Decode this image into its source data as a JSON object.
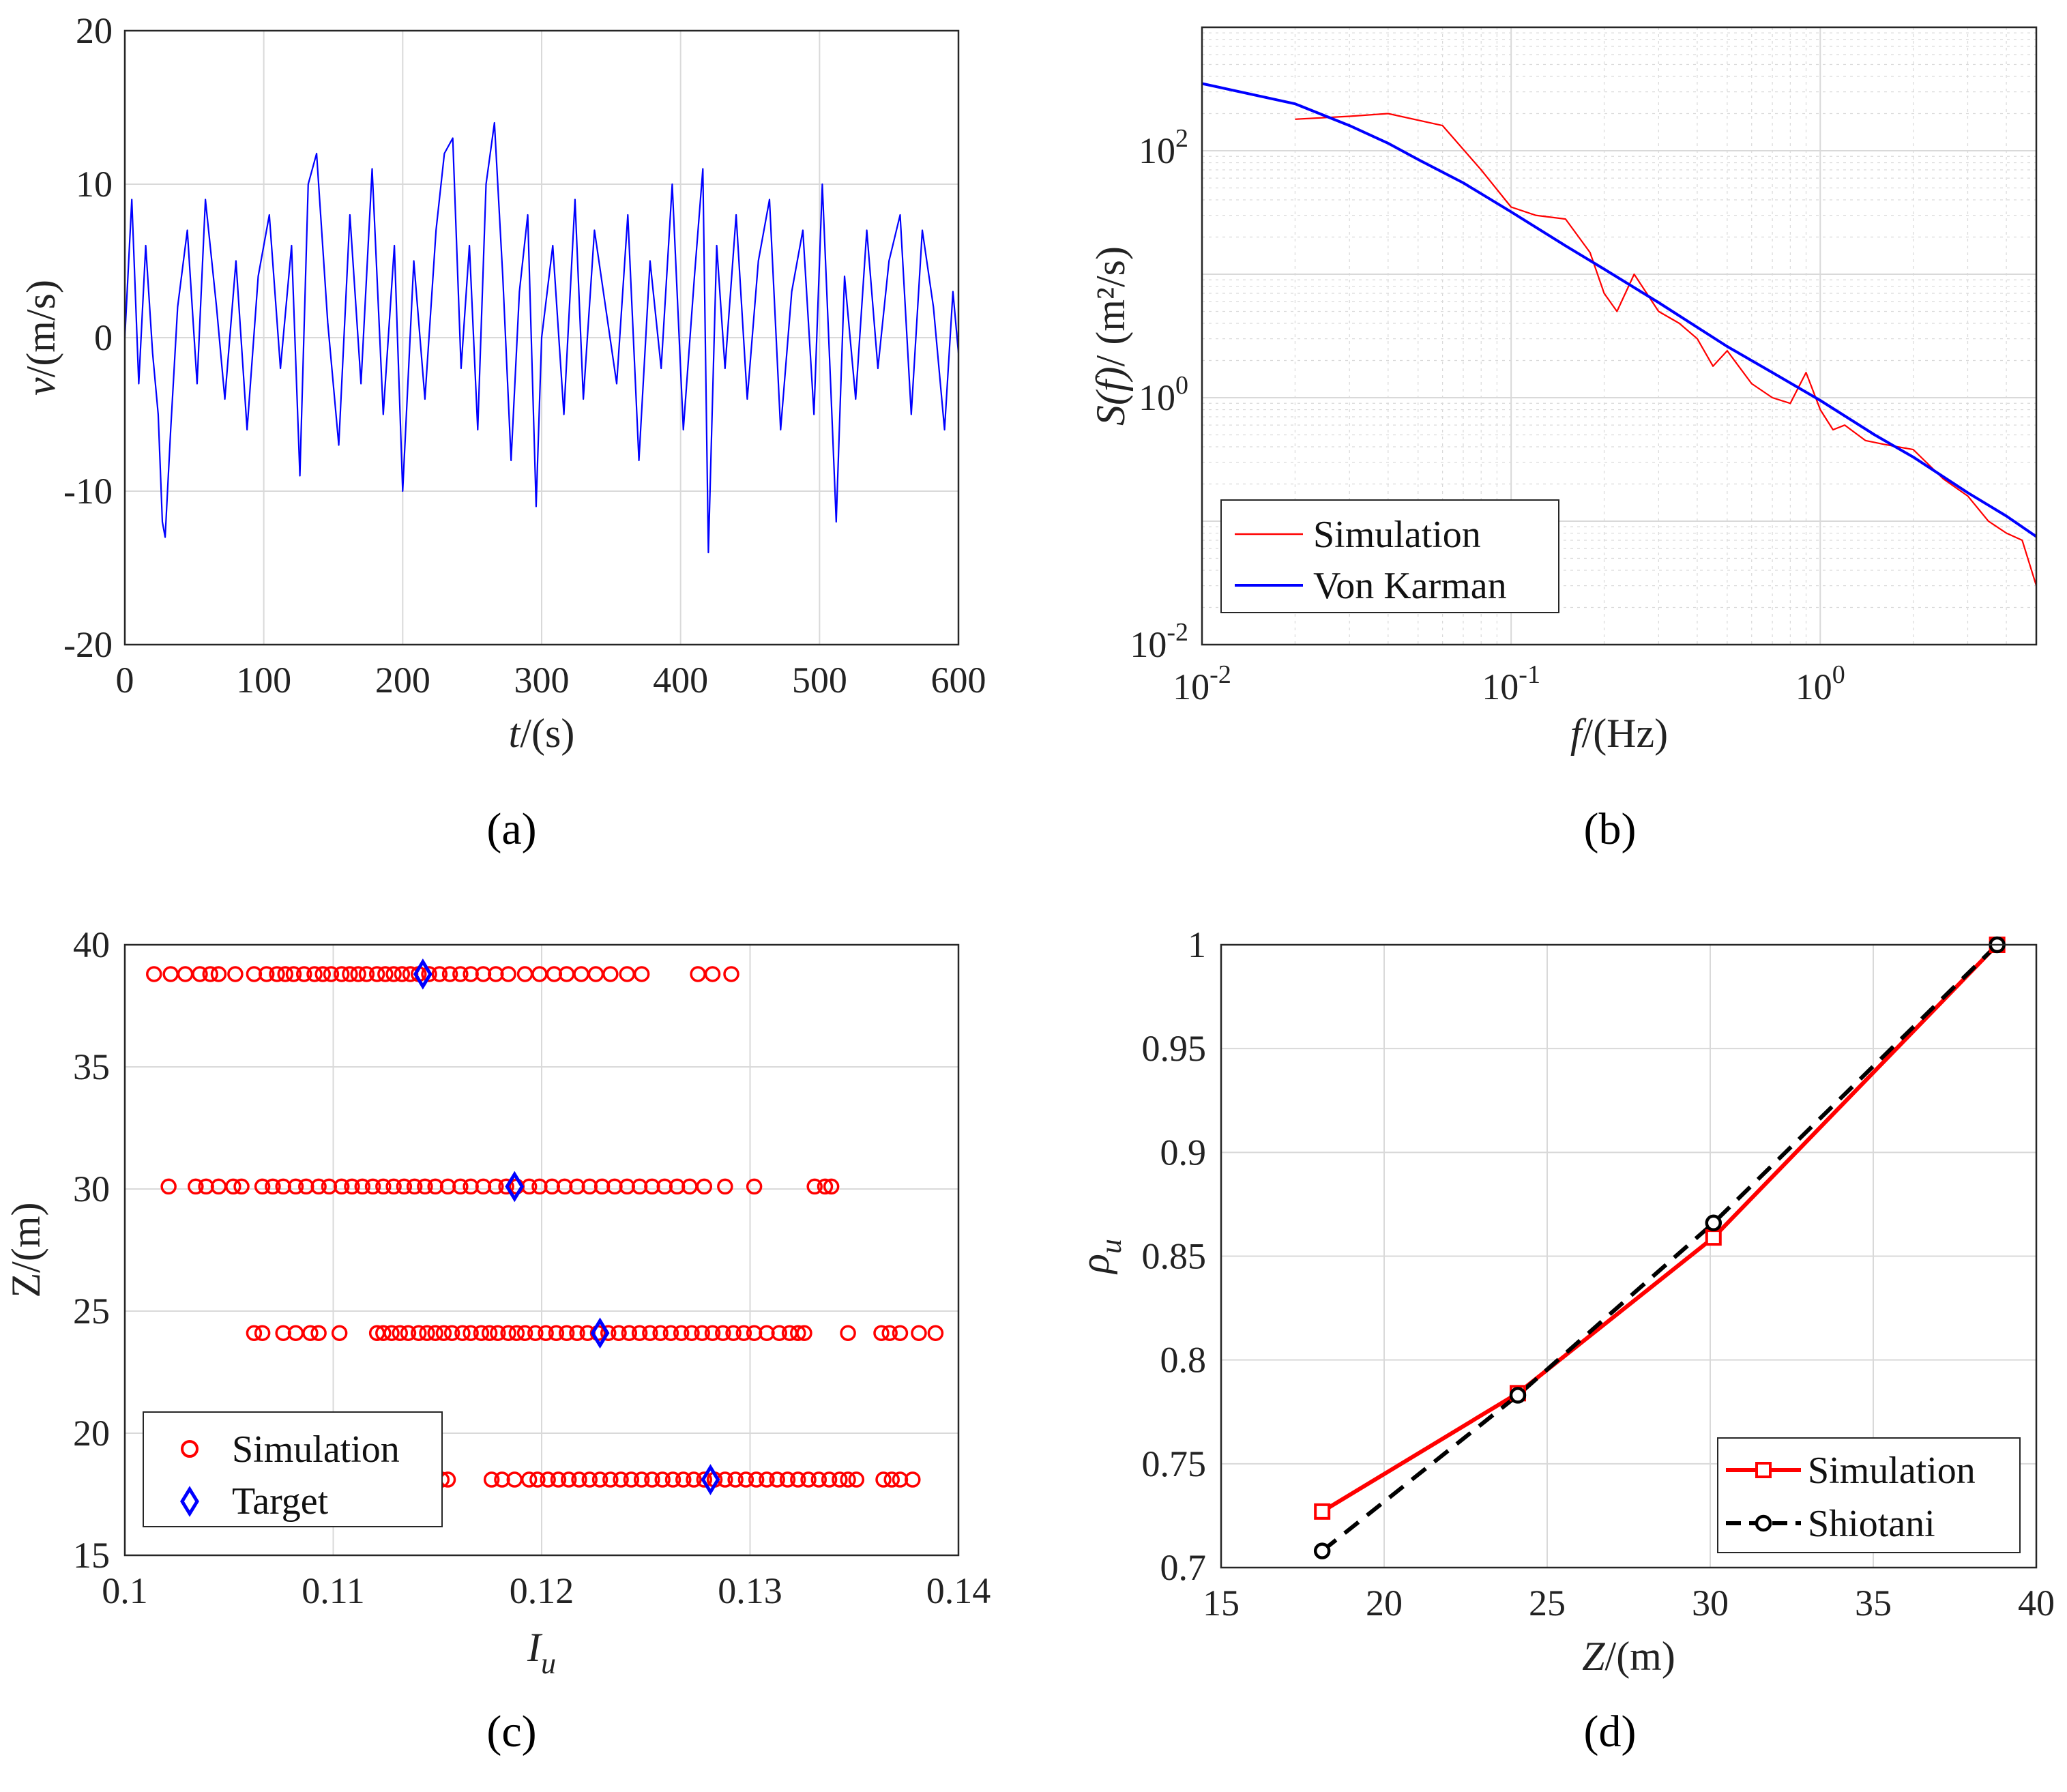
{
  "colors": {
    "blue": "#0000ff",
    "red": "#ff0000",
    "black": "#000000",
    "grid": "#d9d9d9",
    "axis": "#262626"
  },
  "chart_data": [
    {
      "panel": "(a)",
      "type": "line",
      "xlabel_it": "t",
      "xlabel_rest": "/(s)",
      "ylabel_it": "v",
      "ylabel_rest": "/(m/s)",
      "xlim": [
        0,
        600
      ],
      "ylim": [
        -20,
        20
      ],
      "xticks": [
        "0",
        "100",
        "200",
        "300",
        "400",
        "500",
        "600"
      ],
      "yticks": [
        "-20",
        "-10",
        "0",
        "10",
        "20"
      ],
      "grid": true,
      "series": [
        {
          "color": "#0000ff",
          "x": [
            0,
            5,
            10,
            15,
            20,
            24,
            27,
            29,
            33,
            38,
            45,
            52,
            58,
            66,
            72,
            80,
            88,
            96,
            104,
            112,
            120,
            126,
            132,
            138,
            146,
            154,
            162,
            170,
            178,
            186,
            194,
            200,
            208,
            216,
            224,
            230,
            236,
            242,
            248,
            254,
            260,
            266,
            272,
            278,
            284,
            290,
            296,
            300,
            308,
            316,
            324,
            330,
            338,
            346,
            354,
            362,
            370,
            378,
            386,
            394,
            402,
            410,
            416,
            420,
            426,
            432,
            440,
            448,
            456,
            464,
            472,
            480,
            488,
            496,
            502,
            508,
            512,
            518,
            526,
            534,
            542,
            550,
            558,
            566,
            574,
            582,
            590,
            596,
            600
          ],
          "y": [
            0,
            9,
            -3,
            6,
            -1,
            -5,
            -12,
            -13,
            -6,
            2,
            7,
            -3,
            9,
            2,
            -4,
            5,
            -6,
            4,
            8,
            -2,
            6,
            -9,
            10,
            12,
            1,
            -7,
            8,
            -3,
            11,
            -5,
            6,
            -10,
            5,
            -4,
            7,
            12,
            13,
            -2,
            6,
            -6,
            10,
            14,
            4,
            -8,
            3,
            8,
            -11,
            0,
            6,
            -5,
            9,
            -4,
            7,
            2,
            -3,
            8,
            -8,
            5,
            -2,
            10,
            -6,
            4,
            11,
            -14,
            6,
            -2,
            8,
            -4,
            5,
            9,
            -6,
            3,
            7,
            -5,
            10,
            -3,
            -12,
            4,
            -4,
            7,
            -2,
            5,
            8,
            -5,
            7,
            2,
            -6,
            3,
            -1
          ]
        }
      ]
    },
    {
      "panel": "(b)",
      "type": "line",
      "scale": "log-log",
      "xlabel_it": "f",
      "xlabel_rest": "/(Hz)",
      "ylabel_it": "S(f)",
      "ylabel_rest": "/ (m²/s)",
      "xlim": [
        0.01,
        5
      ],
      "ylim": [
        0.01,
        1000
      ],
      "xticks": [
        {
          "base": "10",
          "exp": "-2",
          "v": 0.01
        },
        {
          "base": "10",
          "exp": "-1",
          "v": 0.1
        },
        {
          "base": "10",
          "exp": "0",
          "v": 1
        }
      ],
      "yticks": [
        {
          "base": "10",
          "exp": "-2",
          "v": 0.01
        },
        {
          "base": "10",
          "exp": "0",
          "v": 1
        },
        {
          "base": "10",
          "exp": "2",
          "v": 100
        }
      ],
      "grid": true,
      "legend_position": "bottom-left",
      "series": [
        {
          "name": "Simulation",
          "color": "#ff0000",
          "x": [
            0.02,
            0.03,
            0.04,
            0.06,
            0.08,
            0.1,
            0.12,
            0.15,
            0.18,
            0.2,
            0.22,
            0.25,
            0.3,
            0.35,
            0.4,
            0.45,
            0.5,
            0.6,
            0.7,
            0.8,
            0.9,
            1.0,
            1.1,
            1.2,
            1.4,
            1.6,
            2.0,
            2.5,
            3.0,
            3.5,
            4.0,
            4.5,
            5.0
          ],
          "y": [
            180,
            190,
            200,
            160,
            70,
            35,
            30,
            28,
            15,
            7,
            5,
            10,
            5,
            4,
            3,
            1.8,
            2.4,
            1.3,
            1.0,
            0.9,
            1.6,
            0.8,
            0.55,
            0.6,
            0.45,
            0.42,
            0.38,
            0.22,
            0.16,
            0.1,
            0.08,
            0.07,
            0.03
          ]
        },
        {
          "name": "Von Karman",
          "color": "#0000ff",
          "x": [
            0.01,
            0.02,
            0.03,
            0.04,
            0.05,
            0.07,
            0.1,
            0.15,
            0.2,
            0.3,
            0.5,
            0.7,
            1.0,
            1.5,
            2.0,
            3.0,
            4.0,
            5.0
          ],
          "y": [
            350,
            240,
            160,
            115,
            85,
            55,
            32,
            17,
            11,
            5.9,
            2.6,
            1.6,
            0.95,
            0.5,
            0.33,
            0.17,
            0.11,
            0.075
          ]
        }
      ]
    },
    {
      "panel": "(c)",
      "type": "scatter",
      "xlabel_it": "I",
      "xlabel_sub": "u",
      "ylabel": "Z/(m)",
      "xlim": [
        0.1,
        0.14
      ],
      "ylim": [
        15,
        40
      ],
      "xticks": [
        "0.1",
        "0.11",
        "0.12",
        "0.13",
        "0.14"
      ],
      "yticks": [
        "15",
        "20",
        "25",
        "30",
        "35",
        "40"
      ],
      "grid": true,
      "legend_position": "bottom-left",
      "series": [
        {
          "name": "Simulation",
          "color": "#ff0000",
          "marker": "circle",
          "points": [
            {
              "z": 38.8,
              "x": [
                0.1014,
                0.1022,
                0.1029,
                0.1036,
                0.1041,
                0.1045,
                0.1053,
                0.1062,
                0.1068,
                0.1073,
                0.1077,
                0.1081,
                0.1086,
                0.1091,
                0.1095,
                0.1099,
                0.1104,
                0.1108,
                0.1112,
                0.1116,
                0.1121,
                0.1125,
                0.1129,
                0.1133,
                0.1137,
                0.1141,
                0.1146,
                0.1151,
                0.1156,
                0.1161,
                0.1166,
                0.1172,
                0.1178,
                0.1184,
                0.1192,
                0.1199,
                0.1206,
                0.1212,
                0.1219,
                0.1226,
                0.1233,
                0.1241,
                0.1248,
                0.1275,
                0.1282,
                0.1291
              ]
            },
            {
              "z": 30.1,
              "x": [
                0.1021,
                0.1034,
                0.1039,
                0.1045,
                0.1052,
                0.1056,
                0.1066,
                0.1071,
                0.1076,
                0.1082,
                0.1087,
                0.1093,
                0.1098,
                0.1104,
                0.1109,
                0.1114,
                0.1119,
                0.1124,
                0.1129,
                0.1134,
                0.1139,
                0.1144,
                0.1149,
                0.1155,
                0.1161,
                0.1166,
                0.1172,
                0.1178,
                0.1183,
                0.1188,
                0.1194,
                0.1199,
                0.1205,
                0.1211,
                0.1217,
                0.1223,
                0.1229,
                0.1235,
                0.1241,
                0.1247,
                0.1253,
                0.1259,
                0.1265,
                0.1271,
                0.1278,
                0.1288,
                0.1302,
                0.1331,
                0.1336,
                0.1339
              ]
            },
            {
              "z": 24.1,
              "x": [
                0.1062,
                0.1066,
                0.1076,
                0.1082,
                0.1089,
                0.1093,
                0.1103,
                0.1121,
                0.1124,
                0.1128,
                0.1132,
                0.1136,
                0.1141,
                0.1145,
                0.1149,
                0.1153,
                0.1157,
                0.1162,
                0.1166,
                0.1171,
                0.1175,
                0.1179,
                0.1184,
                0.1188,
                0.1192,
                0.1197,
                0.1202,
                0.1207,
                0.1212,
                0.1217,
                0.1222,
                0.1227,
                0.1232,
                0.1237,
                0.1242,
                0.1247,
                0.1252,
                0.1257,
                0.1262,
                0.1267,
                0.1272,
                0.1277,
                0.1282,
                0.1287,
                0.1292,
                0.1297,
                0.1302,
                0.1308,
                0.1314,
                0.1319,
                0.1323,
                0.1326,
                0.1347,
                0.1363,
                0.1367,
                0.1372,
                0.1381,
                0.1389
              ]
            },
            {
              "z": 18.1,
              "x": [
                0.1152,
                0.1155,
                0.1176,
                0.1181,
                0.1187,
                0.1194,
                0.1198,
                0.1203,
                0.1208,
                0.1213,
                0.1218,
                0.1223,
                0.1228,
                0.1233,
                0.1238,
                0.1243,
                0.1248,
                0.1253,
                0.1258,
                0.1263,
                0.1268,
                0.1273,
                0.1278,
                0.1283,
                0.1288,
                0.1293,
                0.1298,
                0.1303,
                0.1308,
                0.1313,
                0.1318,
                0.1323,
                0.1328,
                0.1333,
                0.1338,
                0.1343,
                0.1347,
                0.1351,
                0.1364,
                0.1368,
                0.1372,
                0.1378
              ]
            }
          ]
        },
        {
          "name": "Target",
          "color": "#0000ff",
          "marker": "diamond",
          "x": [
            0.1143,
            0.1187,
            0.1228,
            0.1281
          ],
          "y": [
            38.8,
            30.1,
            24.1,
            18.1
          ]
        }
      ]
    },
    {
      "panel": "(d)",
      "type": "line",
      "xlabel_it": "Z",
      "xlabel_rest": "/(m)",
      "ylabel_it": "ρ",
      "ylabel_sub": "u",
      "xlim": [
        15,
        40
      ],
      "ylim": [
        0.7,
        1
      ],
      "xticks": [
        "15",
        "20",
        "25",
        "30",
        "35",
        "40"
      ],
      "yticks": [
        "0.7",
        "0.75",
        "0.8",
        "0.85",
        "0.9",
        "0.95",
        "1"
      ],
      "grid": true,
      "legend_position": "bottom-right",
      "series": [
        {
          "name": "Simulation",
          "color": "#ff0000",
          "marker": "square",
          "dash": "solid",
          "x": [
            18.1,
            24.1,
            30.1,
            38.8
          ],
          "y": [
            0.727,
            0.784,
            0.859,
            1.0
          ]
        },
        {
          "name": "Shiotani",
          "color": "#000000",
          "marker": "circle",
          "dash": "dashed",
          "x": [
            18.1,
            24.1,
            30.1,
            38.8
          ],
          "y": [
            0.708,
            0.783,
            0.866,
            1.0
          ]
        }
      ]
    }
  ],
  "panel_tags": {
    "a": "(a)",
    "b": "(b)",
    "c": "(c)",
    "d": "(d)"
  },
  "legends": {
    "b": [
      "Simulation",
      "Von Karman"
    ],
    "c": [
      "Simulation",
      "Target"
    ],
    "d": [
      "Simulation",
      "Shiotani"
    ]
  }
}
